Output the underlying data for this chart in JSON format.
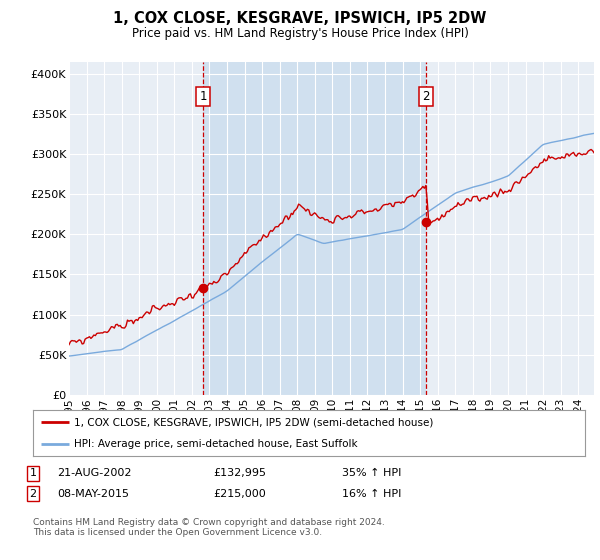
{
  "title": "1, COX CLOSE, KESGRAVE, IPSWICH, IP5 2DW",
  "subtitle": "Price paid vs. HM Land Registry's House Price Index (HPI)",
  "ylabel_ticks": [
    "£0",
    "£50K",
    "£100K",
    "£150K",
    "£200K",
    "£250K",
    "£300K",
    "£350K",
    "£400K"
  ],
  "ytick_vals": [
    0,
    50000,
    100000,
    150000,
    200000,
    250000,
    300000,
    350000,
    400000
  ],
  "ylim": [
    0,
    415000
  ],
  "xlim_start": 1995.0,
  "xlim_end": 2024.9,
  "background_color": "#e8eef5",
  "shaded_color": "#d0e0ef",
  "grid_color": "#ffffff",
  "red_line_color": "#cc0000",
  "blue_line_color": "#7aaadd",
  "marker1_date": 2002.64,
  "marker1_value": 132995,
  "marker1_label": "1",
  "marker1_date_str": "21-AUG-2002",
  "marker1_price_str": "£132,995",
  "marker1_hpi_str": "35% ↑ HPI",
  "marker2_date": 2015.35,
  "marker2_value": 215000,
  "marker2_label": "2",
  "marker2_date_str": "08-MAY-2015",
  "marker2_price_str": "£215,000",
  "marker2_hpi_str": "16% ↑ HPI",
  "legend_line1": "1, COX CLOSE, KESGRAVE, IPSWICH, IP5 2DW (semi-detached house)",
  "legend_line2": "HPI: Average price, semi-detached house, East Suffolk",
  "footnote": "Contains HM Land Registry data © Crown copyright and database right 2024.\nThis data is licensed under the Open Government Licence v3.0.",
  "xtick_years": [
    1995,
    1996,
    1997,
    1998,
    1999,
    2000,
    2001,
    2002,
    2003,
    2004,
    2005,
    2006,
    2007,
    2008,
    2009,
    2010,
    2011,
    2012,
    2013,
    2014,
    2015,
    2016,
    2017,
    2018,
    2019,
    2020,
    2021,
    2022,
    2023,
    2024
  ]
}
